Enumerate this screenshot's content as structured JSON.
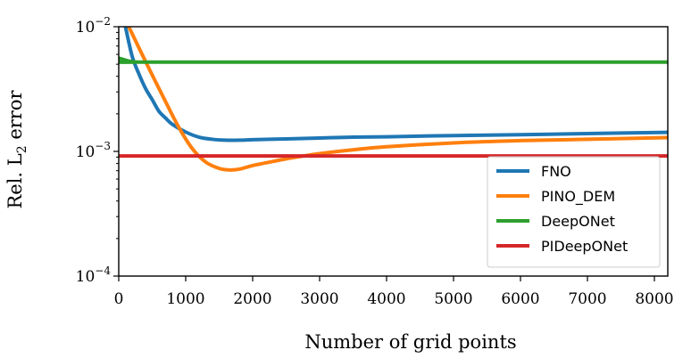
{
  "chart_data": {
    "type": "line",
    "title": "",
    "xlabel": "Number of grid points",
    "ylabel_main": "Rel. L",
    "ylabel_sub": "2",
    "ylabel_tail": " error",
    "yscale": "log",
    "xlim": [
      0,
      8200
    ],
    "ylim": [
      0.0001,
      0.01
    ],
    "grid": false,
    "legend_position": "lower-right",
    "xticks": [
      {
        "value": 0,
        "label": "0"
      },
      {
        "value": 1000,
        "label": "1000"
      },
      {
        "value": 2000,
        "label": "2000"
      },
      {
        "value": 3000,
        "label": "3000"
      },
      {
        "value": 4000,
        "label": "4000"
      },
      {
        "value": 5000,
        "label": "5000"
      },
      {
        "value": 6000,
        "label": "6000"
      },
      {
        "value": 7000,
        "label": "7000"
      },
      {
        "value": 8000,
        "label": "8000"
      }
    ],
    "yticks": [
      {
        "value": 0.0001,
        "base": "10",
        "exp": "−4"
      },
      {
        "value": 0.001,
        "base": "10",
        "exp": "−3"
      },
      {
        "value": 0.01,
        "base": "10",
        "exp": "−2"
      }
    ],
    "series": [
      {
        "name": "FNO",
        "color": "#1f77b4",
        "x": [
          100,
          200,
          300,
          400,
          500,
          600,
          700,
          800,
          1000,
          1200,
          1400,
          1600,
          1800,
          2000,
          2500,
          3000,
          3500,
          4000,
          5000,
          6000,
          7000,
          8200
        ],
        "y": [
          0.01,
          0.0058,
          0.0042,
          0.0032,
          0.0026,
          0.0021,
          0.00185,
          0.00165,
          0.00143,
          0.0013,
          0.00125,
          0.00123,
          0.00123,
          0.00124,
          0.00126,
          0.00128,
          0.0013,
          0.00131,
          0.00134,
          0.00136,
          0.00139,
          0.00142
        ]
      },
      {
        "name": "PINO_DEM",
        "color": "#ff7f0e",
        "x": [
          150,
          300,
          500,
          700,
          900,
          1100,
          1300,
          1500,
          1650,
          1800,
          2000,
          2300,
          2600,
          3000,
          3500,
          4000,
          5000,
          6000,
          7000,
          8200
        ],
        "y": [
          0.01,
          0.0068,
          0.0041,
          0.0025,
          0.00155,
          0.00105,
          0.00082,
          0.00073,
          0.00071,
          0.00072,
          0.00077,
          0.00083,
          0.00089,
          0.00096,
          0.00103,
          0.00109,
          0.00117,
          0.00122,
          0.00125,
          0.00129
        ]
      },
      {
        "name": "DeepONet",
        "color": "#2ca02c",
        "x": [
          0,
          150,
          300,
          500,
          8200
        ],
        "y": [
          0.0056,
          0.0053,
          0.0052,
          0.0052,
          0.0052
        ]
      },
      {
        "name": "PIDeepONet",
        "color": "#d62728",
        "x": [
          0,
          8200
        ],
        "y": [
          0.00092,
          0.00092
        ]
      }
    ]
  }
}
